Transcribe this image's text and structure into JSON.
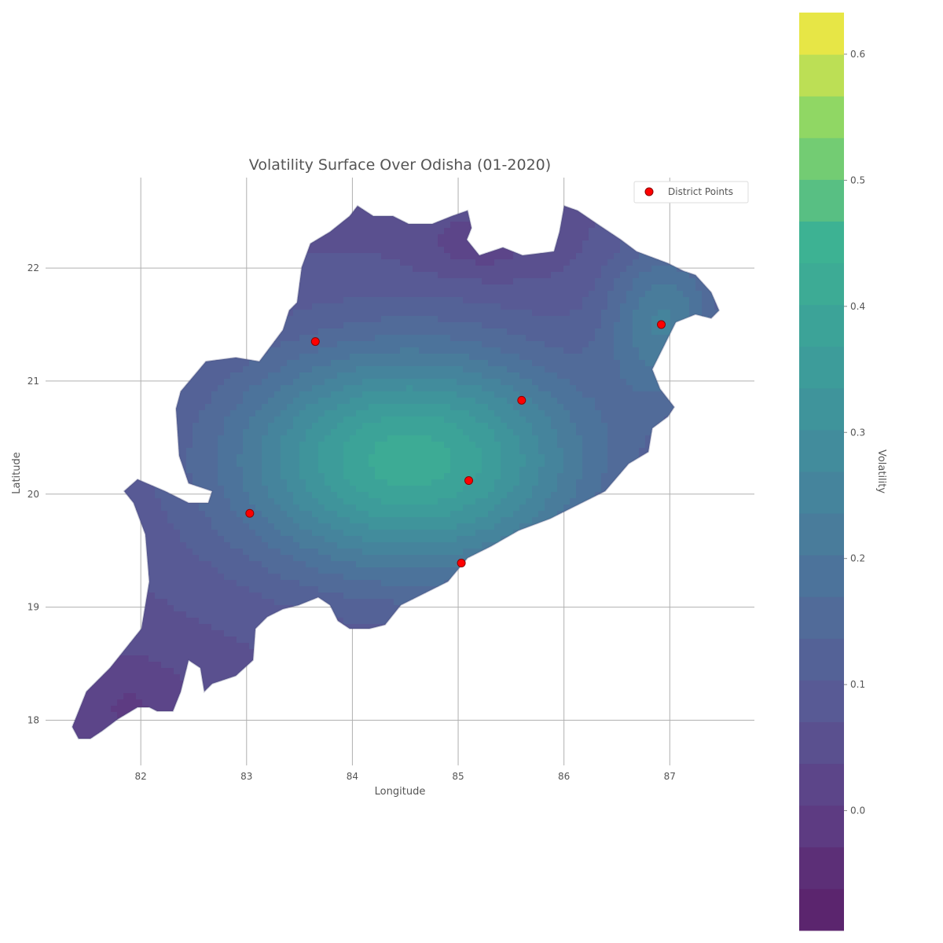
{
  "chart_data": {
    "type": "heatmap",
    "title": "Volatility Surface Over Odisha (01-2020)",
    "xlabel": "Longitude",
    "ylabel": "Latitude",
    "xlim": [
      81.1,
      87.8
    ],
    "ylim": [
      17.6,
      22.8
    ],
    "x_ticks": [
      {
        "value": 82,
        "label": "82"
      },
      {
        "value": 83,
        "label": "83"
      },
      {
        "value": 84,
        "label": "84"
      },
      {
        "value": 85,
        "label": "85"
      },
      {
        "value": 86,
        "label": "86"
      },
      {
        "value": 87,
        "label": "87"
      }
    ],
    "y_ticks": [
      {
        "value": 18,
        "label": "18"
      },
      {
        "value": 19,
        "label": "19"
      },
      {
        "value": 20,
        "label": "20"
      },
      {
        "value": 21,
        "label": "21"
      },
      {
        "value": 22,
        "label": "22"
      }
    ],
    "grid": true,
    "legend": {
      "placement": "top-right",
      "entries": [
        {
          "label": "District Points",
          "color": "#ff0000"
        }
      ]
    },
    "district_points": [
      {
        "lon": 83.65,
        "lat": 21.35
      },
      {
        "lon": 86.92,
        "lat": 21.5
      },
      {
        "lon": 85.6,
        "lat": 20.83
      },
      {
        "lon": 85.1,
        "lat": 20.12
      },
      {
        "lon": 83.03,
        "lat": 19.83
      },
      {
        "lon": 85.03,
        "lat": 19.39
      }
    ],
    "colorbar": {
      "label": "Volatility",
      "range": [
        -0.095,
        0.633
      ],
      "ticks": [
        {
          "value": 0.0,
          "label": "0.0"
        },
        {
          "value": 0.1,
          "label": "0.1"
        },
        {
          "value": 0.2,
          "label": "0.2"
        },
        {
          "value": 0.3,
          "label": "0.3"
        },
        {
          "value": 0.4,
          "label": "0.4"
        },
        {
          "value": 0.5,
          "label": "0.5"
        },
        {
          "value": 0.6,
          "label": "0.6"
        }
      ],
      "colormap": "viridis"
    },
    "surface_peak": {
      "lon": 84.55,
      "lat": 20.3,
      "value": 0.36
    }
  }
}
